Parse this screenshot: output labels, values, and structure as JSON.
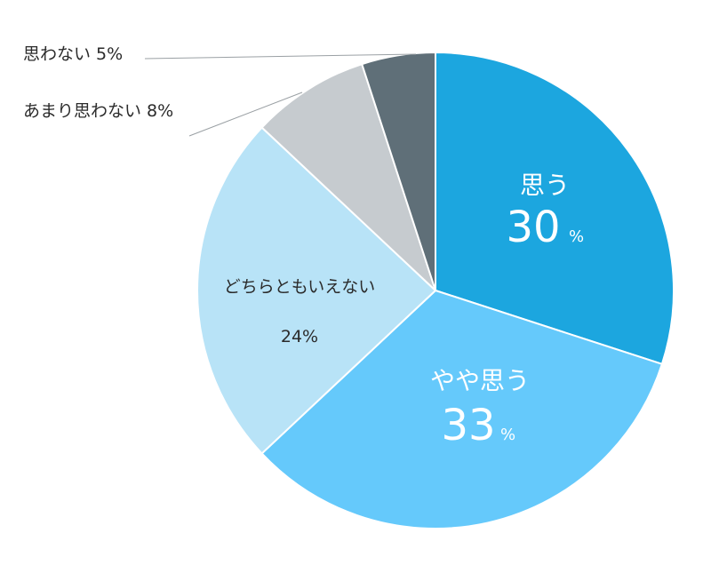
{
  "chart_data": {
    "type": "pie",
    "title": "",
    "slices": [
      {
        "category": "思う",
        "percent_text": "30",
        "percent_sign": "%",
        "value": 30,
        "color": "#1ca6df"
      },
      {
        "category": "やや思う",
        "percent_text": "33",
        "percent_sign": "%",
        "value": 33,
        "color": "#65c9fb"
      },
      {
        "category": "どちらともいえない",
        "percent_text": "24%",
        "value": 24,
        "color": "#b8e3f7"
      },
      {
        "category": "あまり思わない",
        "percent_text": "8%",
        "value": 8,
        "color": "#c6cbcf"
      },
      {
        "category": "思わない",
        "percent_text": "5%",
        "value": 5,
        "color": "#5f6f78"
      }
    ],
    "external_labels": {
      "negative_low": "思わない 5%",
      "negative_mid": "あまり思わない 8%"
    },
    "start_angle": "12 o'clock",
    "direction": "clockwise",
    "slice_border_color": "#ffffff",
    "leader_line_color": "#9aa0a4"
  }
}
